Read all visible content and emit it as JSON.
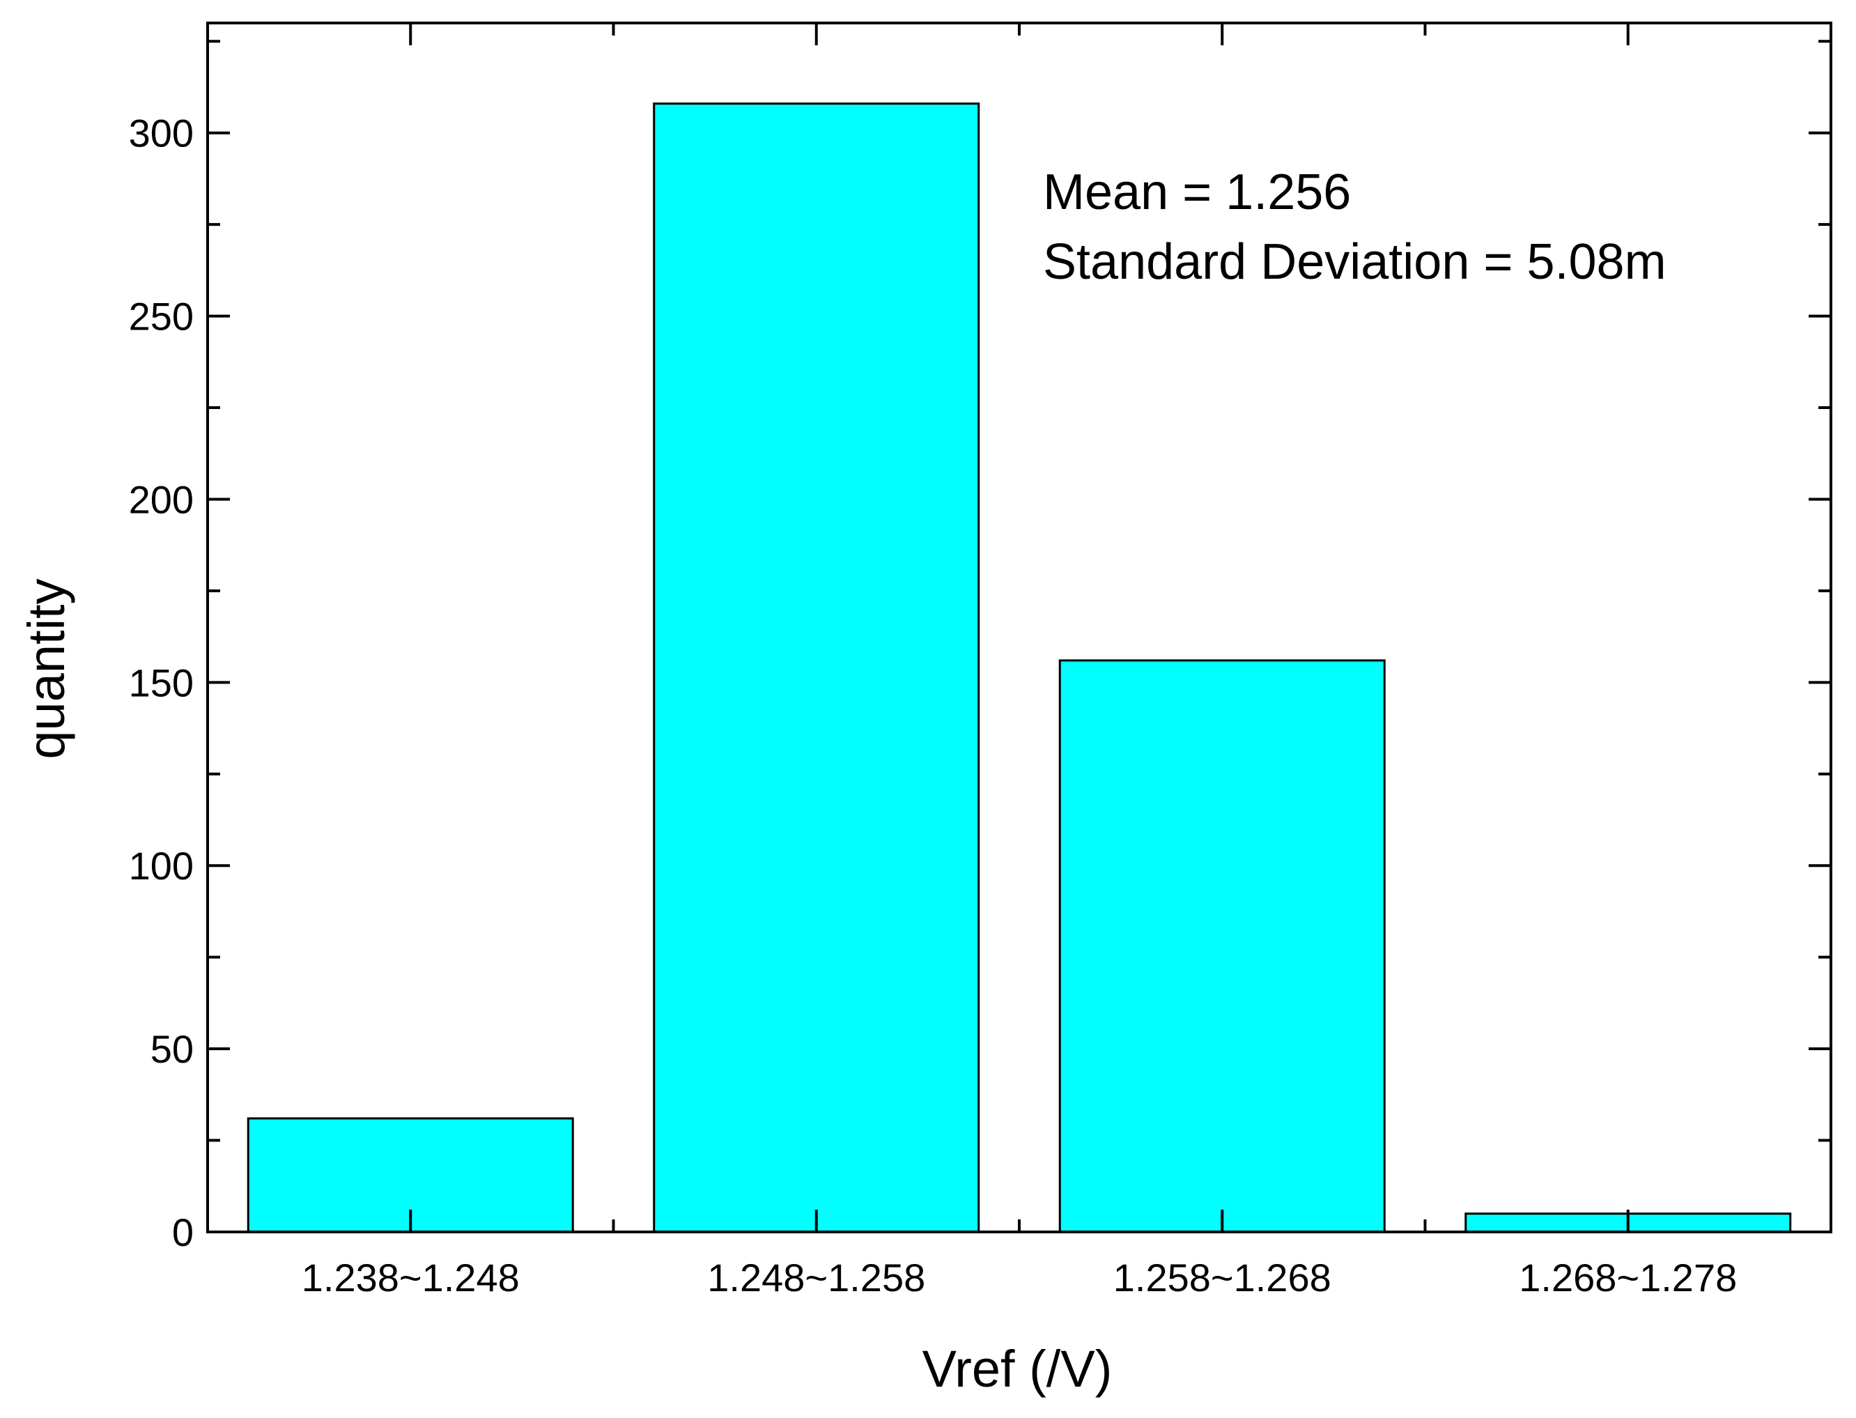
{
  "chart_data": {
    "type": "bar",
    "categories": [
      "1.238~1.248",
      "1.248~1.258",
      "1.258~1.268",
      "1.268~1.278"
    ],
    "values": [
      31,
      308,
      156,
      5
    ],
    "title": "",
    "xlabel": "Vref (/V)",
    "ylabel": "quantity",
    "ylim": [
      0,
      330
    ],
    "yticks": [
      0,
      50,
      100,
      150,
      200,
      250,
      300
    ],
    "yticks_minor": [
      25,
      75,
      125,
      175,
      225,
      275,
      325
    ],
    "bar_color": "#00FFFF",
    "annotations": [
      "Mean = 1.256",
      "Standard Deviation = 5.08m"
    ],
    "grid": false,
    "legend": "none"
  }
}
